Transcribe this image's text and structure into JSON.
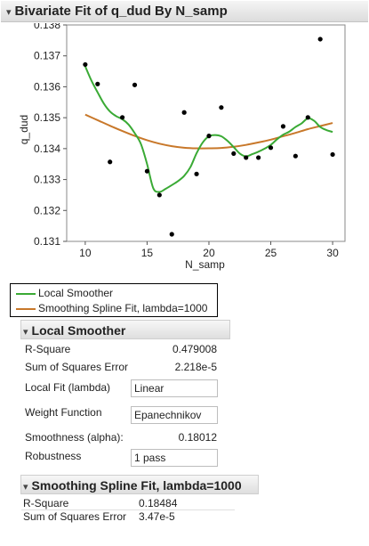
{
  "report": {
    "title": "Bivariate Fit of q_dud By N_samp"
  },
  "chart_data": {
    "type": "scatter",
    "title": "",
    "xlabel": "N_samp",
    "ylabel": "q_dud",
    "xlim": [
      8.5,
      31
    ],
    "ylim": [
      0.131,
      0.138
    ],
    "x_ticks": [
      "10",
      "15",
      "20",
      "25",
      "30"
    ],
    "x_tick_values": [
      10,
      15,
      20,
      25,
      30
    ],
    "y_ticks": [
      "0.131",
      "0.132",
      "0.133",
      "0.134",
      "0.135",
      "0.136",
      "0.137",
      "0.138"
    ],
    "y_tick_values": [
      0.131,
      0.132,
      0.133,
      0.134,
      0.135,
      0.136,
      0.137,
      0.138
    ],
    "grid": false,
    "legend_position": "bottom-left",
    "points": [
      {
        "x": 10,
        "y": 0.13672
      },
      {
        "x": 11,
        "y": 0.13609
      },
      {
        "x": 12,
        "y": 0.13357
      },
      {
        "x": 13,
        "y": 0.13501
      },
      {
        "x": 14,
        "y": 0.13606
      },
      {
        "x": 15,
        "y": 0.13327
      },
      {
        "x": 16,
        "y": 0.1325
      },
      {
        "x": 17,
        "y": 0.13123
      },
      {
        "x": 18,
        "y": 0.13517
      },
      {
        "x": 19,
        "y": 0.13318
      },
      {
        "x": 20,
        "y": 0.13441
      },
      {
        "x": 21,
        "y": 0.13533
      },
      {
        "x": 22,
        "y": 0.13384
      },
      {
        "x": 23,
        "y": 0.13371
      },
      {
        "x": 24,
        "y": 0.13371
      },
      {
        "x": 25,
        "y": 0.13403
      },
      {
        "x": 26,
        "y": 0.13472
      },
      {
        "x": 27,
        "y": 0.13376
      },
      {
        "x": 28,
        "y": 0.13501
      },
      {
        "x": 29,
        "y": 0.13754
      },
      {
        "x": 30,
        "y": 0.13381
      }
    ],
    "series": [
      {
        "name": "Local Smoother",
        "color": "#3aaa35",
        "x": [
          10,
          10.5,
          11,
          11.5,
          12,
          12.5,
          13,
          13.5,
          14,
          14.5,
          15,
          15.5,
          16,
          16.5,
          17,
          17.5,
          18,
          18.5,
          19,
          19.5,
          20,
          20.5,
          21,
          21.5,
          22,
          22.5,
          23,
          23.5,
          24,
          24.5,
          25,
          25.5,
          26,
          26.5,
          27,
          27.5,
          28,
          28.5,
          29,
          29.5,
          30
        ],
        "y": [
          0.13666,
          0.1362,
          0.13582,
          0.13546,
          0.1352,
          0.13505,
          0.13495,
          0.13478,
          0.1345,
          0.13415,
          0.1335,
          0.13272,
          0.1326,
          0.1327,
          0.13282,
          0.13295,
          0.13312,
          0.1334,
          0.13385,
          0.1342,
          0.1344,
          0.13444,
          0.1344,
          0.13425,
          0.13405,
          0.13384,
          0.13375,
          0.13382,
          0.1339,
          0.134,
          0.13412,
          0.1343,
          0.13445,
          0.13455,
          0.1347,
          0.13482,
          0.13498,
          0.1349,
          0.1347,
          0.1346,
          0.13454
        ]
      },
      {
        "name": "Smoothing Spline Fit, lambda=1000",
        "color": "#c8782a",
        "x": [
          10,
          11,
          12,
          13,
          14,
          15,
          16,
          17,
          18,
          19,
          20,
          21,
          22,
          23,
          24,
          25,
          26,
          27,
          28,
          29,
          30
        ],
        "y": [
          0.1351,
          0.13492,
          0.13474,
          0.13457,
          0.13441,
          0.13427,
          0.13416,
          0.13408,
          0.13403,
          0.13401,
          0.13401,
          0.13402,
          0.13406,
          0.13412,
          0.1342,
          0.13429,
          0.1344,
          0.13451,
          0.13463,
          0.13473,
          0.13483
        ]
      }
    ]
  },
  "legend": {
    "items": [
      {
        "label": "Local Smoother",
        "color": "#3aaa35"
      },
      {
        "label": "Smoothing Spline Fit, lambda=1000",
        "color": "#c8782a"
      }
    ]
  },
  "local_smoother": {
    "title": "Local Smoother",
    "r_square_label": "R-Square",
    "r_square_value": "0.479008",
    "sse_label": "Sum of Squares Error",
    "sse_value": "2.218e-5",
    "local_fit_label": "Local Fit (lambda)",
    "local_fit_value": "Linear",
    "weight_label": "Weight Function",
    "weight_value": "Epanechnikov",
    "smoothness_label": "Smoothness (alpha):",
    "smoothness_value": "0.18012",
    "robustness_label": "Robustness",
    "robustness_value": "1 pass"
  },
  "smoothing_spline": {
    "title": "Smoothing Spline Fit, lambda=1000",
    "r_square_label": "R-Square",
    "r_square_value": "0.18484",
    "sse_label": "Sum of Squares Error",
    "sse_value": "3.47e-5"
  }
}
